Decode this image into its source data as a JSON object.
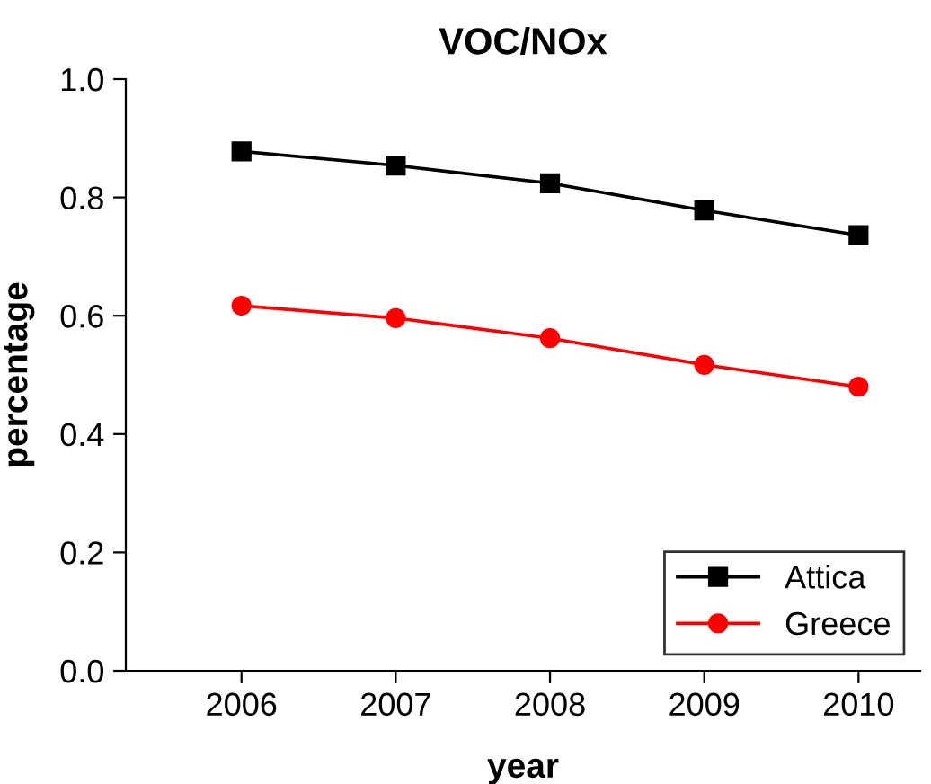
{
  "chart_data": {
    "type": "line",
    "title": "VOC/NOx",
    "xlabel": "year",
    "ylabel": "percentage",
    "x": [
      2006,
      2007,
      2008,
      2009,
      2010
    ],
    "series": [
      {
        "name": "Attica",
        "color": "#000000",
        "marker": "square",
        "values": [
          0.878,
          0.854,
          0.824,
          0.778,
          0.736
        ]
      },
      {
        "name": "Greece",
        "color": "#ff0000",
        "marker": "circle",
        "values": [
          0.617,
          0.596,
          0.562,
          0.517,
          0.48
        ]
      }
    ],
    "xlim": [
      2005.25,
      2010.4
    ],
    "xticks": [
      2006,
      2007,
      2008,
      2009,
      2010
    ],
    "ylim": [
      0.0,
      1.0
    ],
    "yticks": [
      {
        "value": 0.0,
        "label": "0.0"
      },
      {
        "value": 0.2,
        "label": "0.2"
      },
      {
        "value": 0.4,
        "label": "0.4"
      },
      {
        "value": 0.6,
        "label": "0.6"
      },
      {
        "value": 0.8,
        "label": "0.8"
      },
      {
        "value": 1.0,
        "label": "1.0"
      }
    ],
    "grid": false,
    "legend": "bottom right",
    "line_style": "solid"
  }
}
